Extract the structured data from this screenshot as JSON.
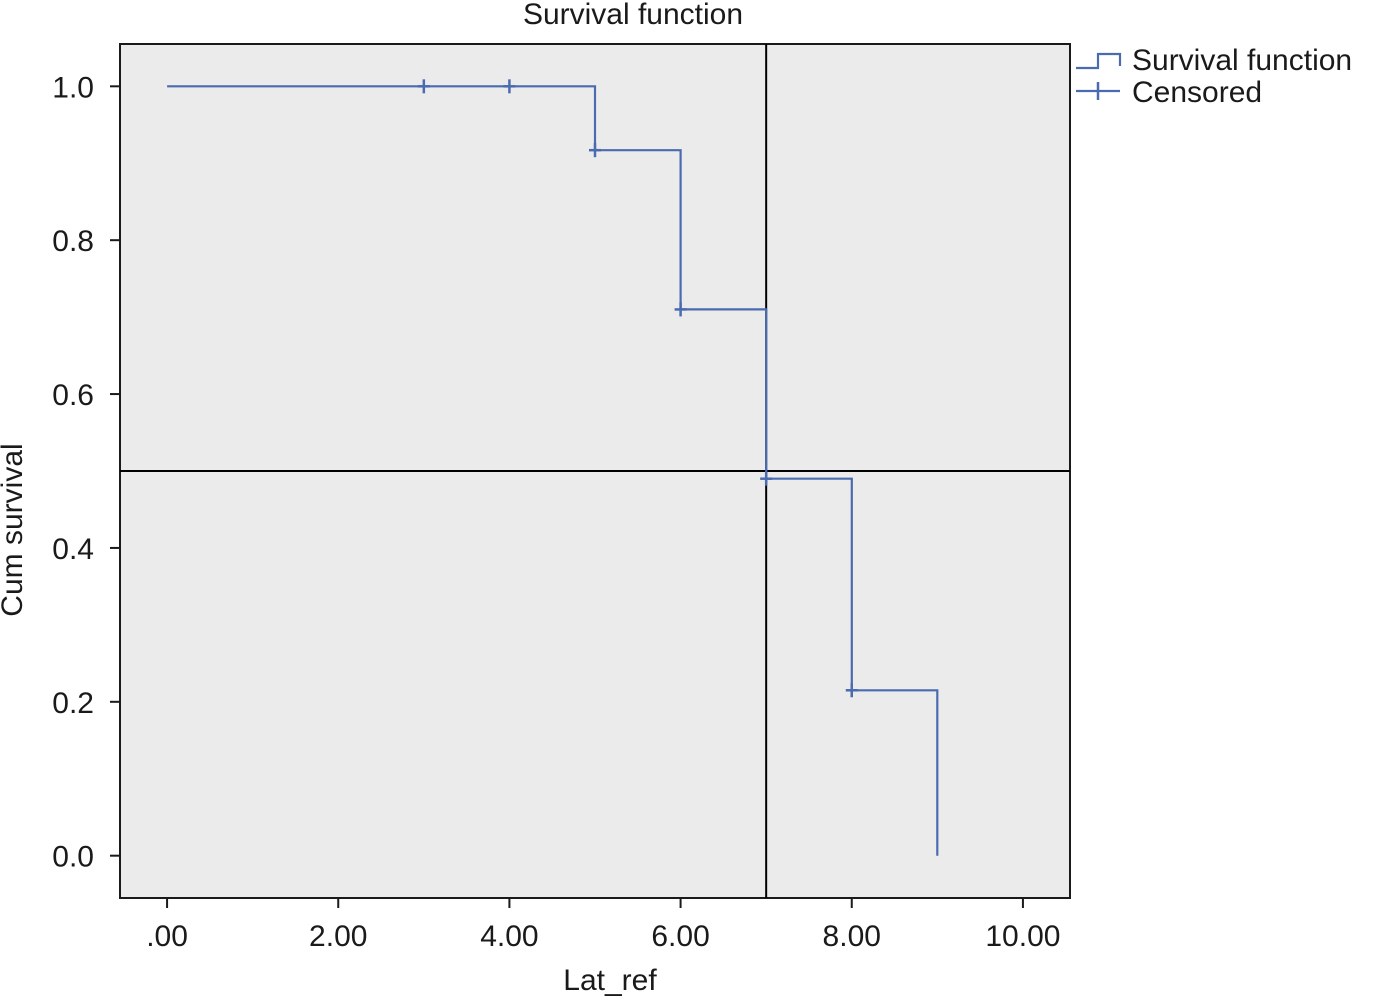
{
  "chart_data": {
    "type": "line",
    "title": "Survival function",
    "xlabel": "Lat_ref",
    "ylabel": "Cum survival",
    "xlim": [
      -0.55,
      10.55
    ],
    "ylim": [
      -0.055,
      1.055
    ],
    "xticks": [
      0,
      2,
      4,
      6,
      8,
      10
    ],
    "xtick_labels": [
      ".00",
      "2.00",
      "4.00",
      "6.00",
      "8.00",
      "10.00"
    ],
    "yticks": [
      0,
      0.2,
      0.4,
      0.6,
      0.8,
      1.0
    ],
    "ytick_labels": [
      "0.0",
      "0.2",
      "0.4",
      "0.6",
      "0.8",
      "1.0"
    ],
    "legend_position": "right-top",
    "grid": false,
    "series": [
      {
        "name": "Survival function",
        "step": true,
        "x": [
          0,
          5,
          5,
          6,
          6,
          7,
          7,
          8,
          8,
          9,
          9
        ],
        "y": [
          1.0,
          1.0,
          0.917,
          0.917,
          0.71,
          0.71,
          0.49,
          0.49,
          0.215,
          0.215,
          0.0
        ],
        "color": "#4a6bb0"
      },
      {
        "name": "Censored",
        "marker": "+",
        "x": [
          3,
          4,
          5,
          6,
          7,
          8
        ],
        "y": [
          1.0,
          1.0,
          0.917,
          0.71,
          0.49,
          0.215
        ],
        "color": "#4a6bb0"
      }
    ],
    "reference_lines": [
      {
        "orientation": "horizontal",
        "value": 0.5,
        "color": "#000000"
      },
      {
        "orientation": "vertical",
        "value": 7,
        "color": "#000000"
      }
    ],
    "colors": {
      "plot_background": "#ebebeb",
      "series": "#4a6bb0",
      "axis": "#1a1a1a"
    }
  }
}
